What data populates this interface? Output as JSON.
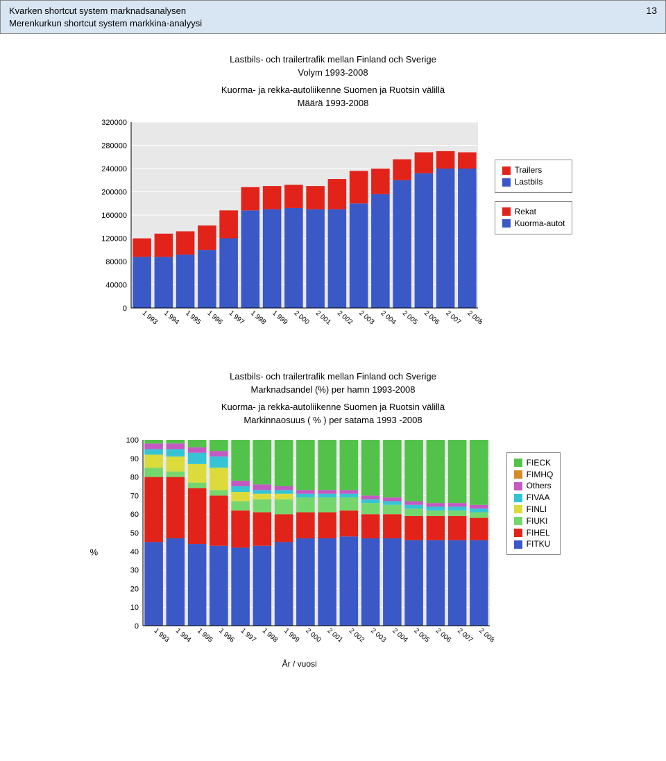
{
  "header": {
    "line1": "Kvarken shortcut system marknadsanalysen",
    "line2": "Merenkurkun shortcut system markkina-analyysi",
    "page_no": "13",
    "band_bg": "#d8e6f4"
  },
  "chart1": {
    "type": "stacked-bar",
    "title1": "Lastbils- och trailertrafik mellan Finland och Sverige",
    "title2": "Volym 1993-2008",
    "title3": "Kuorma- ja rekka-autoliikenne Suomen ja Ruotsin välillä",
    "title4": "Määrä 1993-2008",
    "categories": [
      "1 993",
      "1 994",
      "1 995",
      "1 996",
      "1 997",
      "1 998",
      "1 999",
      "2 000",
      "2 001",
      "2 002",
      "2 003",
      "2 004",
      "2 005",
      "2 006",
      "2 007",
      "2 008"
    ],
    "series": [
      {
        "name_a": "Trailers",
        "name_b": "Rekat",
        "color": "#e2231a",
        "values": [
          32000,
          40000,
          40000,
          42000,
          48000,
          40000,
          40000,
          40000,
          40000,
          52000,
          56000,
          44000,
          36000,
          36000,
          30000,
          28000
        ]
      },
      {
        "name_a": "Lastbils",
        "name_b": "Kuorma-autot",
        "color": "#3a59c7",
        "values": [
          88000,
          88000,
          92000,
          100000,
          120000,
          168000,
          170000,
          172000,
          170000,
          170000,
          180000,
          196000,
          220000,
          232000,
          240000,
          240000
        ]
      }
    ],
    "ylim": [
      0,
      320000
    ],
    "ytick_step": 40000,
    "yticks": [
      "0",
      "40000",
      "80000",
      "120000",
      "160000",
      "200000",
      "240000",
      "280000",
      "320000"
    ],
    "plot_bg": "#e8e8e8",
    "grid_color": "#ffffff",
    "axis_color": "#000000",
    "bar_gap": 0.15,
    "title_fontsize": 13
  },
  "chart2": {
    "type": "stacked-bar-pct",
    "title1": "Lastbils- och trailertrafik mellan Finland och Sverige",
    "title2": "Marknadsandel (%) per hamn 1993-2008",
    "title3": "Kuorma- ja rekka-autoliikenne Suomen ja Ruotsin välillä",
    "title4": "Markinnaosuus ( % ) per satama 1993 -2008",
    "pct_label": "%",
    "x_caption": "År / vuosi",
    "categories": [
      "1 993",
      "1 994",
      "1 995",
      "1 996",
      "1 997",
      "1 998",
      "1 999",
      "2 000",
      "2 001",
      "2 002",
      "2 003",
      "2 004",
      "2 005",
      "2 006",
      "2 007",
      "2 008"
    ],
    "series": [
      {
        "name": "FIECK",
        "color": "#53c24a",
        "values": [
          2,
          2,
          4,
          6,
          22,
          24,
          25,
          27,
          27,
          27,
          30,
          31,
          33,
          34,
          34,
          35
        ]
      },
      {
        "name": "FIMHQ",
        "color": "#d88a2a",
        "values": [
          0,
          0,
          0,
          0,
          0,
          0,
          0,
          0,
          0,
          0,
          0,
          0,
          0,
          0,
          0,
          0
        ]
      },
      {
        "name": "Others",
        "color": "#c25ac2",
        "values": [
          3,
          3,
          3,
          3,
          3,
          3,
          2,
          2,
          2,
          2,
          2,
          2,
          2,
          2,
          2,
          2
        ]
      },
      {
        "name": "FIVAA",
        "color": "#35c4d4",
        "values": [
          3,
          4,
          6,
          6,
          3,
          2,
          2,
          2,
          2,
          2,
          2,
          2,
          2,
          2,
          2,
          2
        ]
      },
      {
        "name": "FINLI",
        "color": "#dbdc3c",
        "values": [
          7,
          8,
          10,
          12,
          5,
          3,
          3,
          0,
          0,
          0,
          0,
          0,
          0,
          0,
          0,
          0
        ]
      },
      {
        "name": "FIUKI",
        "color": "#76d66e",
        "values": [
          5,
          3,
          3,
          3,
          5,
          7,
          8,
          8,
          8,
          7,
          6,
          5,
          4,
          3,
          3,
          3
        ]
      },
      {
        "name": "FIHEL",
        "color": "#e2231a",
        "values": [
          35,
          33,
          30,
          27,
          20,
          18,
          15,
          14,
          14,
          14,
          13,
          13,
          13,
          13,
          13,
          12
        ]
      },
      {
        "name": "FITKU",
        "color": "#3a59c7",
        "values": [
          45,
          47,
          44,
          43,
          42,
          43,
          45,
          47,
          47,
          48,
          47,
          47,
          46,
          46,
          46,
          46
        ]
      }
    ],
    "ylim": [
      0,
      100
    ],
    "ytick_step": 10,
    "yticks": [
      "0",
      "10",
      "20",
      "30",
      "40",
      "50",
      "60",
      "70",
      "80",
      "90",
      "100"
    ],
    "plot_bg": "#e8e8e8",
    "grid_color": "#ffffff",
    "axis_color": "#000000",
    "bar_gap": 0.15
  }
}
